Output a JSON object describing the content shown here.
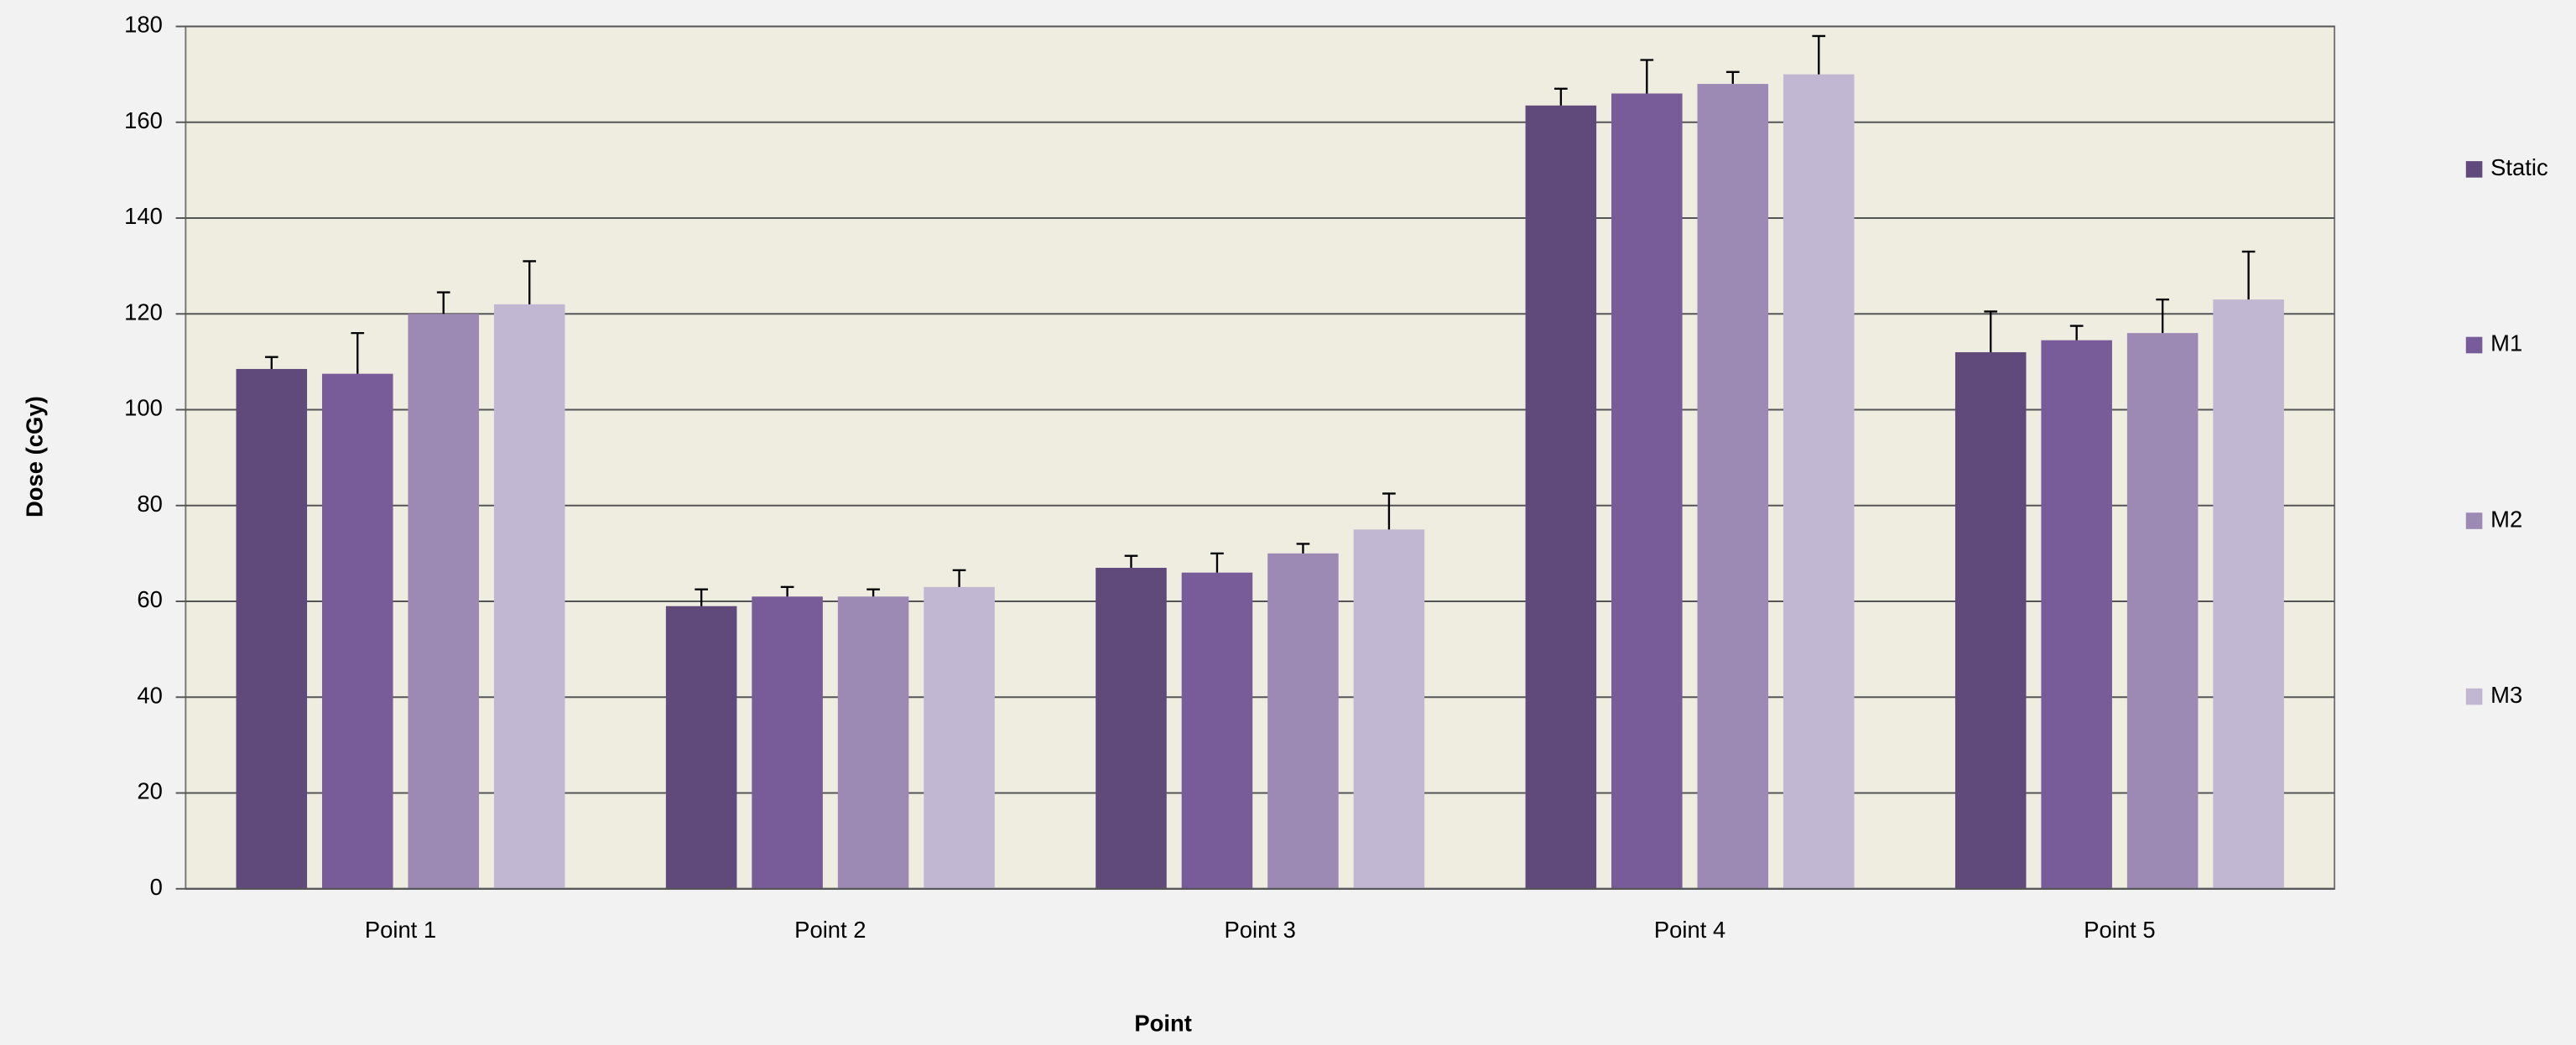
{
  "chart_data": {
    "type": "bar",
    "x_label": "Point",
    "y_label": "Dose (cGy)",
    "categories": [
      "Point 1",
      "Point 2",
      "Point 3",
      "Point 4",
      "Point 5"
    ],
    "series": [
      {
        "name": "Static",
        "color": "#604a7b",
        "values": [
          108.5,
          59,
          67,
          163.5,
          112
        ],
        "errors": [
          2.5,
          3.5,
          2.5,
          3.5,
          8.5
        ]
      },
      {
        "name": "M1",
        "color": "#775c99",
        "values": [
          107.5,
          61,
          66,
          166,
          114.5
        ],
        "errors": [
          8.5,
          2,
          4,
          7,
          3
        ]
      },
      {
        "name": "M2",
        "color": "#9c8ab5",
        "values": [
          120,
          61,
          70,
          168,
          116
        ],
        "errors": [
          4.5,
          1.5,
          2,
          2.5,
          7
        ]
      },
      {
        "name": "M3",
        "color": "#c2b7d2",
        "values": [
          122,
          63,
          75,
          170,
          123
        ],
        "errors": [
          9,
          3.5,
          7.5,
          8,
          10
        ]
      }
    ],
    "ylim": [
      0,
      180
    ],
    "yticks": [
      0,
      20,
      40,
      60,
      80,
      100,
      120,
      140,
      160,
      180
    ],
    "grid": true,
    "legend": "right"
  }
}
